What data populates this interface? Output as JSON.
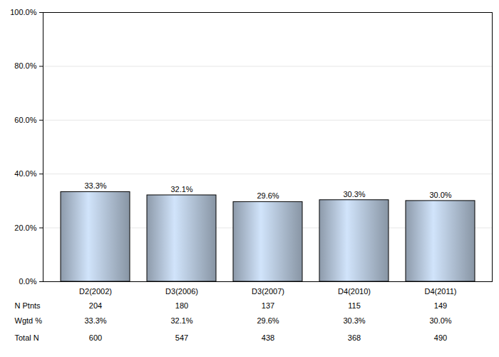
{
  "chart_data": {
    "type": "bar",
    "categories": [
      "D2(2002)",
      "D3(2006)",
      "D3(2007)",
      "D4(2010)",
      "D4(2011)"
    ],
    "values": [
      33.3,
      32.1,
      29.6,
      30.3,
      30.0
    ],
    "value_labels": [
      "33.3%",
      "32.1%",
      "29.6%",
      "30.3%",
      "30.0%"
    ],
    "data_labels": true,
    "color": "#a9b8cb",
    "ylim": [
      0,
      100
    ],
    "yticks": [
      {
        "value": 0,
        "label": "0.0%"
      },
      {
        "value": 20,
        "label": "20.0%"
      },
      {
        "value": 40,
        "label": "40.0%"
      },
      {
        "value": 60,
        "label": "60.0%"
      },
      {
        "value": 80,
        "label": "80.0%"
      },
      {
        "value": 100,
        "label": "100.0%"
      }
    ],
    "grid": true
  },
  "table": {
    "rows": [
      {
        "label": "N Ptnts",
        "values": [
          204,
          180,
          137,
          115,
          149
        ]
      },
      {
        "label": "Wgtd %",
        "values": [
          "33.3%",
          "32.1%",
          "29.6%",
          "30.3%",
          "30.0%"
        ]
      },
      {
        "label": "Total N",
        "values": [
          600,
          547,
          438,
          368,
          490
        ]
      }
    ]
  }
}
